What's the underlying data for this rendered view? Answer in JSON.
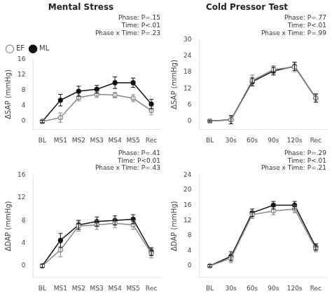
{
  "chart_data": [
    {
      "type": "line",
      "title": "Mental Stress",
      "categories": [
        "BL",
        "MS1",
        "MS2",
        "MS3",
        "MS4",
        "MS5",
        "Rec"
      ],
      "y_label": "ΔSAP (mmHg)",
      "annotation": "Phase: P=.15\nTime: P<.01\nPhase x Time: P=.23",
      "series": [
        {
          "name": "EF",
          "color": "#888888",
          "marker": "circle-open",
          "values": [
            0,
            1.0,
            6.2,
            7.0,
            6.8,
            6.0,
            2.8
          ],
          "errors": [
            0.3,
            1.2,
            0.9,
            0.8,
            0.7,
            0.9,
            1.1
          ]
        },
        {
          "name": "ML",
          "color": "#111111",
          "marker": "circle",
          "values": [
            0,
            5.5,
            7.8,
            8.3,
            10.0,
            10.0,
            4.5
          ],
          "errors": [
            0.3,
            1.5,
            1.3,
            1.0,
            1.5,
            1.2,
            1.2
          ]
        }
      ],
      "ylim": [
        -2,
        16
      ],
      "yticks": [
        0,
        4,
        8,
        12,
        16
      ],
      "grid": false,
      "legend": "upper left"
    },
    {
      "type": "line",
      "title": "Cold Pressor Test",
      "categories": [
        "BL",
        "30s",
        "60s",
        "90s",
        "120s",
        "Rec"
      ],
      "y_label": "ΔSAP (mmHg)",
      "annotation": "Phase: P=.77\nTime: P<.01\nPhase x Time: P=.99",
      "series": [
        {
          "name": "EF",
          "color": "#888888",
          "marker": "circle-open",
          "values": [
            0,
            0.5,
            15.0,
            19.0,
            20.0,
            8.5
          ],
          "errors": [
            0.3,
            1.5,
            2.0,
            1.5,
            1.8,
            1.5
          ]
        },
        {
          "name": "ML",
          "color": "#111111",
          "marker": "circle",
          "values": [
            0,
            0.5,
            14.5,
            18.5,
            20.2,
            8.5
          ],
          "errors": [
            0.3,
            1.5,
            1.5,
            1.5,
            1.5,
            1.5
          ]
        }
      ],
      "ylim": [
        -3,
        30
      ],
      "yticks": [
        0,
        6,
        12,
        18,
        24,
        30
      ],
      "grid": false
    },
    {
      "type": "line",
      "categories": [
        "BL",
        "MS1",
        "MS2",
        "MS3",
        "MS4",
        "MS5",
        "Rec"
      ],
      "y_label": "ΔDAP (mmHg)",
      "annotation": "Phase: P=.41\nTime: P<0.01\nPhase x Time: P=.43",
      "series": [
        {
          "name": "EF",
          "color": "#888888",
          "marker": "circle-open",
          "values": [
            0,
            2.8,
            7.0,
            7.2,
            7.5,
            7.2,
            2.2
          ],
          "errors": [
            0.3,
            1.2,
            0.9,
            0.8,
            0.8,
            0.8,
            0.8
          ]
        },
        {
          "name": "ML",
          "color": "#111111",
          "marker": "circle",
          "values": [
            0,
            4.5,
            7.2,
            7.8,
            8.0,
            8.2,
            2.5
          ],
          "errors": [
            0.3,
            1.2,
            0.8,
            0.8,
            0.8,
            0.8,
            0.7
          ]
        }
      ],
      "ylim": [
        -2,
        16
      ],
      "yticks": [
        0,
        4,
        8,
        12,
        16
      ],
      "grid": false
    },
    {
      "type": "line",
      "categories": [
        "BL",
        "30s",
        "60s",
        "90s",
        "120s",
        "Rec"
      ],
      "y_label": "ΔDAP (mmHg)",
      "annotation": "Phase: P=.29\nTime: P<.01\nPhase x Time: P=.21",
      "series": [
        {
          "name": "EF",
          "color": "#888888",
          "marker": "circle-open",
          "values": [
            0,
            2.0,
            13.5,
            14.5,
            15.0,
            4.5
          ],
          "errors": [
            0.3,
            1.2,
            1.0,
            1.0,
            1.0,
            0.8
          ]
        },
        {
          "name": "ML",
          "color": "#111111",
          "marker": "circle",
          "values": [
            0,
            2.5,
            14.0,
            16.0,
            16.0,
            5.0
          ],
          "errors": [
            0.3,
            1.2,
            1.0,
            1.0,
            1.0,
            0.8
          ]
        }
      ],
      "ylim": [
        -3,
        24
      ],
      "yticks": [
        0,
        4,
        8,
        12,
        16,
        20,
        24
      ],
      "grid": false
    }
  ]
}
